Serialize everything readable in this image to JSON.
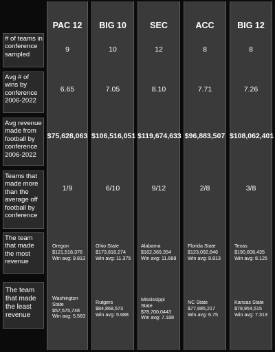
{
  "row_labels": {
    "teams_sampled": "# of teams in conference sampled",
    "avg_wins": "Avg # of wins by conference 2006-2022",
    "avg_revenue": "Avg revenue made from football by conference 2006-2022",
    "teams_above_avg": "Teams that made more than the average off football by conference",
    "most_revenue": "The team that made the most revenue",
    "least_revenue": "The team that made the least revenue"
  },
  "conferences": [
    {
      "name": "PAC 12",
      "teams_sampled": "9",
      "avg_wins": "6.65",
      "avg_revenue": "$75,628,063",
      "teams_above_avg": "1/9",
      "most": {
        "team": "Oregon",
        "revenue": "$121,518,376",
        "win_avg": "Win avg: 9.813"
      },
      "least": {
        "team": "Washington State",
        "revenue": "$57,575,748",
        "win_avg": "Win avg: 5.563"
      }
    },
    {
      "name": "BIG 10",
      "teams_sampled": "10",
      "avg_wins": "7.05",
      "avg_revenue": "$106,516,051",
      "teams_above_avg": "6/10",
      "most": {
        "team": "Ohio State",
        "revenue": "$173,818,274",
        "win_avg": "Win avg: 11.375"
      },
      "least": {
        "team": "Rutgers",
        "revenue": "$84,868,573",
        "win_avg": "Win avg: 5.688"
      }
    },
    {
      "name": "SEC",
      "teams_sampled": "12",
      "avg_wins": "8.10",
      "avg_revenue": "$119,674,633",
      "teams_above_avg": "9/12",
      "most": {
        "team": "Alabama",
        "revenue": "$162,369,354",
        "win_avg": "Win avg: 11.688"
      },
      "least": {
        "team": "Mississippi State",
        "revenue": "$78,700,0443",
        "win_avg": "Win avg: 7.188"
      }
    },
    {
      "name": "ACC",
      "teams_sampled": "8",
      "avg_wins": "7.71",
      "avg_revenue": "$96,883,507",
      "teams_above_avg": "2/8",
      "most": {
        "team": "Florida State",
        "revenue": "$123,092,846",
        "win_avg": "Win avg: 8.813"
      },
      "least": {
        "team": "NC State",
        "revenue": "$77,685,217",
        "win_avg": "Win avg: 6.75"
      }
    },
    {
      "name": "BIG 12",
      "teams_sampled": "8",
      "avg_wins": "7.26",
      "avg_revenue": "$108,062,401",
      "teams_above_avg": "3/8",
      "most": {
        "team": "Texas",
        "revenue": "$190,608,435",
        "win_avg": "Win avg: 8.125"
      },
      "least": {
        "team": "Kansas State",
        "revenue": "$78,954,515",
        "win_avg": "Win avg: 7.313"
      }
    }
  ]
}
